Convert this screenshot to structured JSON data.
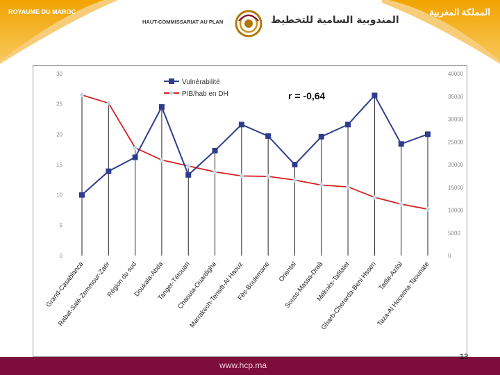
{
  "header": {
    "left_corner": "ROYAUME DU MAROC",
    "right_corner": "المملكة المغربية",
    "org_fr": "HAUT-COMMISSARIAT AU PLAN",
    "org_ar": "المندوبية السامية للتخطيط",
    "colors": {
      "banner": "#f0a000",
      "banner_light": "#f7c75a"
    }
  },
  "footer": {
    "url": "www.hcp.ma",
    "page": "13",
    "color": "#7d0d3a"
  },
  "chart_data": {
    "type": "line",
    "annotation": "r =  -0,64",
    "categories": [
      "Grand-Casablanca",
      "Rabat-Salé-Zemmour-Zaër",
      "Région du sud",
      "Doukala-Abda",
      "Tanger-Tétouan",
      "Chaouia-Ouardigha",
      "Marrakech-Tensift-Al Haouz",
      "Fès-Boulemane",
      "Oriental",
      "Souss-Massa-Draâ",
      "Méknès-Tafilalet",
      "Gharb-Cherarda-Beni Hssen",
      "Tadla-Azilal",
      "Taza-Al Hoceima-Taounate"
    ],
    "series": [
      {
        "name": "Vulnérabilité",
        "axis": "left",
        "color": "#2e3d8c",
        "values": [
          10.0,
          13.9,
          16.2,
          24.5,
          13.3,
          17.3,
          21.6,
          19.7,
          15.0,
          19.6,
          21.6,
          26.4,
          18.4,
          20.0
        ]
      },
      {
        "name": "PIB/hab en DH",
        "axis": "right",
        "color": "#d42020",
        "values": [
          35300,
          33500,
          23700,
          21000,
          19700,
          18400,
          17500,
          17400,
          16600,
          15500,
          15100,
          12800,
          11300,
          10200
        ]
      }
    ],
    "y_left": {
      "min": 0,
      "max": 30,
      "ticks": [
        "0",
        "5",
        "10",
        "15",
        "20",
        "25",
        "30"
      ]
    },
    "y_right": {
      "min": 0,
      "max": 40000,
      "ticks": [
        "0",
        "5000",
        "10000",
        "15000",
        "20000",
        "25000",
        "30000",
        "35000",
        "40000"
      ]
    },
    "grid": "vertical drop lines",
    "legend": "top-center"
  }
}
